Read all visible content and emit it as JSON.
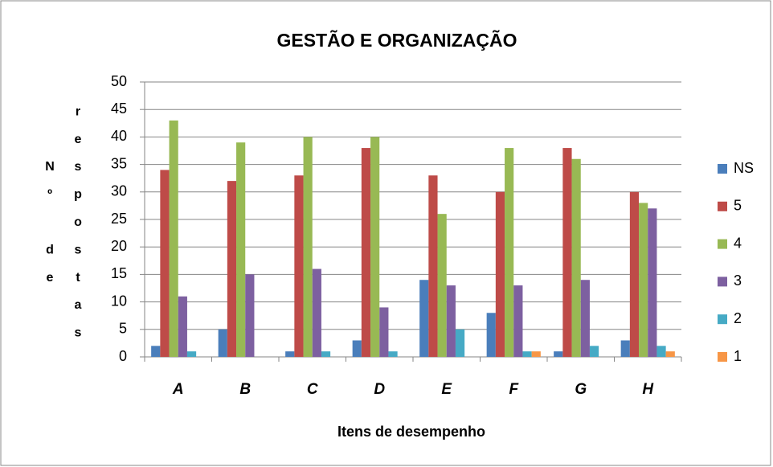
{
  "chart_data": {
    "type": "bar",
    "title": "GESTÃO E ORGANIZAÇÃO",
    "x_label": "Itens de desempenho",
    "y_label": "Nº de respostas",
    "categories": [
      "A",
      "B",
      "C",
      "D",
      "E",
      "F",
      "G",
      "H"
    ],
    "series": [
      {
        "name": "NS",
        "color": "#4a7ebb",
        "values": [
          2,
          5,
          1,
          3,
          14,
          8,
          1,
          3
        ]
      },
      {
        "name": "5",
        "color": "#be4b48",
        "values": [
          34,
          32,
          33,
          38,
          33,
          30,
          38,
          30
        ]
      },
      {
        "name": "4",
        "color": "#98b954",
        "values": [
          43,
          39,
          40,
          40,
          26,
          38,
          36,
          28
        ]
      },
      {
        "name": "3",
        "color": "#7d60a0",
        "values": [
          11,
          15,
          16,
          9,
          13,
          13,
          14,
          27
        ]
      },
      {
        "name": "2",
        "color": "#46aac5",
        "values": [
          1,
          0,
          1,
          1,
          5,
          1,
          2,
          2
        ]
      },
      {
        "name": "1",
        "color": "#f79646",
        "values": [
          0,
          0,
          0,
          0,
          0,
          1,
          0,
          1
        ]
      }
    ],
    "ylim": [
      0,
      50
    ],
    "yticks": [
      0,
      5,
      10,
      15,
      20,
      25,
      30,
      35,
      40,
      45,
      50
    ],
    "grid": true,
    "legend": "right"
  }
}
